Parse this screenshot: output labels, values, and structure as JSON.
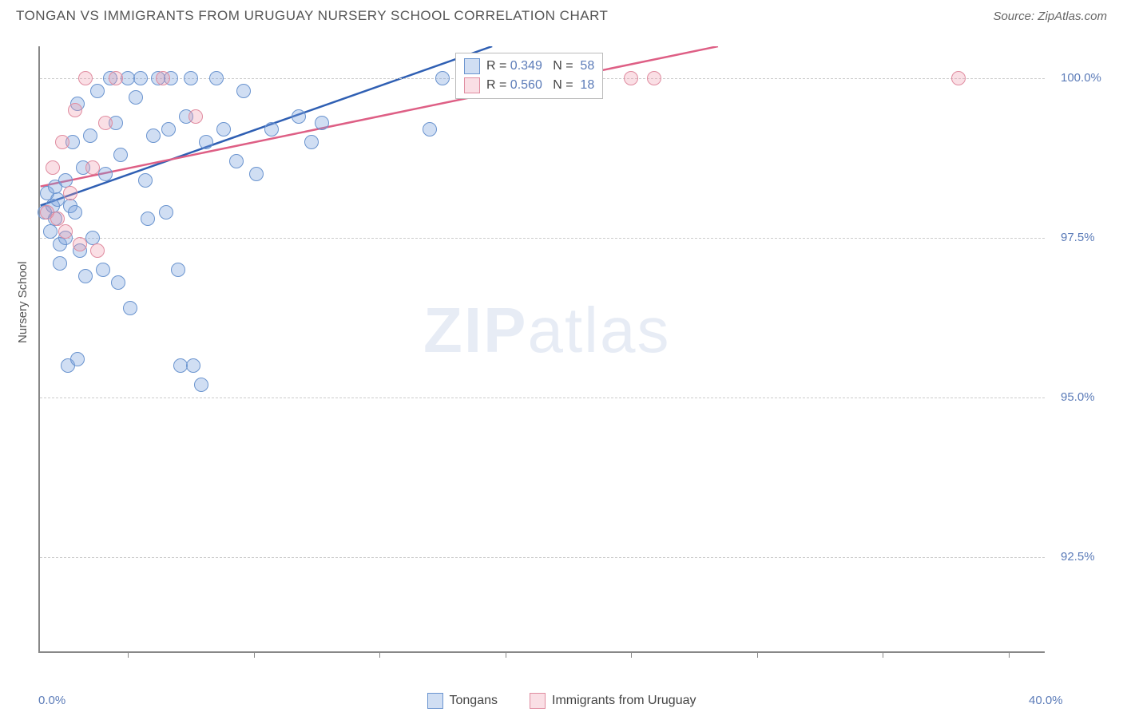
{
  "title": "TONGAN VS IMMIGRANTS FROM URUGUAY NURSERY SCHOOL CORRELATION CHART",
  "source_label": "Source: ZipAtlas.com",
  "ylabel": "Nursery School",
  "watermark": {
    "bold": "ZIP",
    "rest": "atlas"
  },
  "chart": {
    "type": "scatter",
    "background_color": "#ffffff",
    "grid_color": "#cccccc",
    "axis_color": "#888888",
    "label_color": "#5b7bb8",
    "xlim": [
      0.0,
      40.0
    ],
    "ylim": [
      91.0,
      100.5
    ],
    "ytick_values": [
      92.5,
      95.0,
      97.5,
      100.0
    ],
    "ytick_labels": [
      "92.5%",
      "95.0%",
      "97.5%",
      "100.0%"
    ],
    "x_left_label": "0.0%",
    "x_right_label": "40.0%",
    "xtick_positions": [
      3.5,
      8.5,
      13.5,
      18.5,
      23.5,
      28.5,
      33.5,
      38.5
    ],
    "marker_size": 18,
    "series": [
      {
        "name": "Tongans",
        "fill": "rgba(120,160,220,0.35)",
        "stroke": "#6a94cf",
        "r_value": "0.349",
        "n_value": "58",
        "trend": {
          "x1": 0.0,
          "y1": 98.0,
          "x2": 18.0,
          "y2": 100.5,
          "color": "#2f5fb3",
          "width": 2.5
        },
        "points": [
          [
            0.2,
            97.9
          ],
          [
            0.3,
            98.2
          ],
          [
            0.4,
            97.6
          ],
          [
            0.5,
            98.0
          ],
          [
            0.6,
            98.3
          ],
          [
            0.6,
            97.8
          ],
          [
            0.7,
            98.1
          ],
          [
            0.8,
            97.4
          ],
          [
            0.8,
            97.1
          ],
          [
            1.0,
            97.5
          ],
          [
            1.0,
            98.4
          ],
          [
            1.1,
            95.5
          ],
          [
            1.2,
            98.0
          ],
          [
            1.3,
            99.0
          ],
          [
            1.4,
            97.9
          ],
          [
            1.5,
            99.6
          ],
          [
            1.5,
            95.6
          ],
          [
            1.6,
            97.3
          ],
          [
            1.7,
            98.6
          ],
          [
            1.8,
            96.9
          ],
          [
            2.0,
            99.1
          ],
          [
            2.1,
            97.5
          ],
          [
            2.3,
            99.8
          ],
          [
            2.5,
            97.0
          ],
          [
            2.6,
            98.5
          ],
          [
            2.8,
            100.0
          ],
          [
            3.0,
            99.3
          ],
          [
            3.1,
            96.8
          ],
          [
            3.2,
            98.8
          ],
          [
            3.5,
            100.0
          ],
          [
            3.6,
            96.4
          ],
          [
            3.8,
            99.7
          ],
          [
            4.0,
            100.0
          ],
          [
            4.2,
            98.4
          ],
          [
            4.3,
            97.8
          ],
          [
            4.5,
            99.1
          ],
          [
            4.7,
            100.0
          ],
          [
            5.0,
            97.9
          ],
          [
            5.1,
            99.2
          ],
          [
            5.2,
            100.0
          ],
          [
            5.5,
            97.0
          ],
          [
            5.6,
            95.5
          ],
          [
            5.8,
            99.4
          ],
          [
            6.0,
            100.0
          ],
          [
            6.1,
            95.5
          ],
          [
            6.4,
            95.2
          ],
          [
            6.6,
            99.0
          ],
          [
            7.0,
            100.0
          ],
          [
            7.3,
            99.2
          ],
          [
            7.8,
            98.7
          ],
          [
            8.1,
            99.8
          ],
          [
            8.6,
            98.5
          ],
          [
            9.2,
            99.2
          ],
          [
            10.3,
            99.4
          ],
          [
            10.8,
            99.0
          ],
          [
            11.2,
            99.3
          ],
          [
            15.5,
            99.2
          ],
          [
            16.0,
            100.0
          ]
        ]
      },
      {
        "name": "Immigrants from Uruguay",
        "fill": "rgba(240,150,170,0.30)",
        "stroke": "#e08ca0",
        "r_value": "0.560",
        "n_value": "18",
        "trend": {
          "x1": 0.0,
          "y1": 98.3,
          "x2": 27.0,
          "y2": 100.5,
          "color": "#de5f85",
          "width": 2.5
        },
        "points": [
          [
            0.3,
            97.9
          ],
          [
            0.5,
            98.6
          ],
          [
            0.7,
            97.8
          ],
          [
            0.9,
            99.0
          ],
          [
            1.0,
            97.6
          ],
          [
            1.2,
            98.2
          ],
          [
            1.4,
            99.5
          ],
          [
            1.6,
            97.4
          ],
          [
            1.8,
            100.0
          ],
          [
            2.1,
            98.6
          ],
          [
            2.3,
            97.3
          ],
          [
            2.6,
            99.3
          ],
          [
            3.0,
            100.0
          ],
          [
            4.9,
            100.0
          ],
          [
            6.2,
            99.4
          ],
          [
            23.5,
            100.0
          ],
          [
            24.4,
            100.0
          ],
          [
            36.5,
            100.0
          ]
        ]
      }
    ]
  },
  "legend_top": {
    "r_label": "R =",
    "n_label": "N ="
  },
  "bottom_legend": [
    "Tongans",
    "Immigrants from Uruguay"
  ]
}
